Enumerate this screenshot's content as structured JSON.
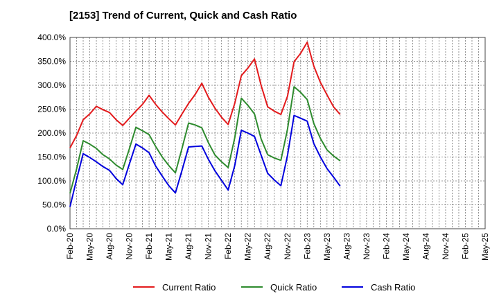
{
  "chart_data": {
    "type": "line",
    "title": "[2153]  Trend of Current, Quick and Cash Ratio",
    "xlabel": "",
    "ylabel": "",
    "ylim": [
      0,
      400
    ],
    "yticks": [
      0,
      50,
      100,
      150,
      200,
      250,
      300,
      350,
      400
    ],
    "ytick_labels": [
      "0.0%",
      "50.0%",
      "100.0%",
      "150.0%",
      "200.0%",
      "250.0%",
      "300.0%",
      "350.0%",
      "400.0%"
    ],
    "x_tick_labels": [
      "Feb-20",
      "May-20",
      "Aug-20",
      "Nov-20",
      "Feb-21",
      "May-21",
      "Aug-21",
      "Nov-21",
      "Feb-22",
      "May-22",
      "Aug-22",
      "Nov-22",
      "Feb-23",
      "May-23",
      "Aug-23",
      "Nov-23",
      "Feb-24",
      "May-24",
      "Aug-24",
      "Nov-24",
      "Feb-25",
      "May-25"
    ],
    "grid": true,
    "legend_position": "bottom",
    "series": [
      {
        "name": "Current Ratio",
        "color": "#e31a1c",
        "values": [
          169,
          195,
          228,
          240,
          256,
          249,
          243,
          228,
          216,
          231,
          246,
          260,
          279,
          260,
          244,
          230,
          217,
          240,
          262,
          281,
          304,
          275,
          252,
          233,
          218,
          262,
          320,
          336,
          355,
          300,
          255,
          246,
          239,
          277,
          349,
          367,
          390,
          340,
          306,
          280,
          255,
          239
        ]
      },
      {
        "name": "Quick Ratio",
        "color": "#2e8b2e",
        "values": [
          74,
          125,
          184,
          177,
          168,
          155,
          146,
          133,
          124,
          167,
          212,
          205,
          197,
          172,
          150,
          132,
          117,
          168,
          221,
          217,
          211,
          180,
          154,
          140,
          128,
          190,
          273,
          258,
          240,
          188,
          155,
          148,
          143,
          208,
          297,
          285,
          270,
          220,
          189,
          165,
          152,
          142
        ]
      },
      {
        "name": "Cash Ratio",
        "color": "#0000dd",
        "values": [
          46,
          103,
          157,
          149,
          140,
          130,
          122,
          105,
          92,
          135,
          177,
          169,
          159,
          131,
          110,
          90,
          75,
          122,
          171,
          172,
          173,
          145,
          121,
          101,
          81,
          132,
          206,
          200,
          193,
          154,
          116,
          102,
          90,
          153,
          237,
          231,
          225,
          178,
          150,
          126,
          108,
          89
        ]
      }
    ]
  }
}
